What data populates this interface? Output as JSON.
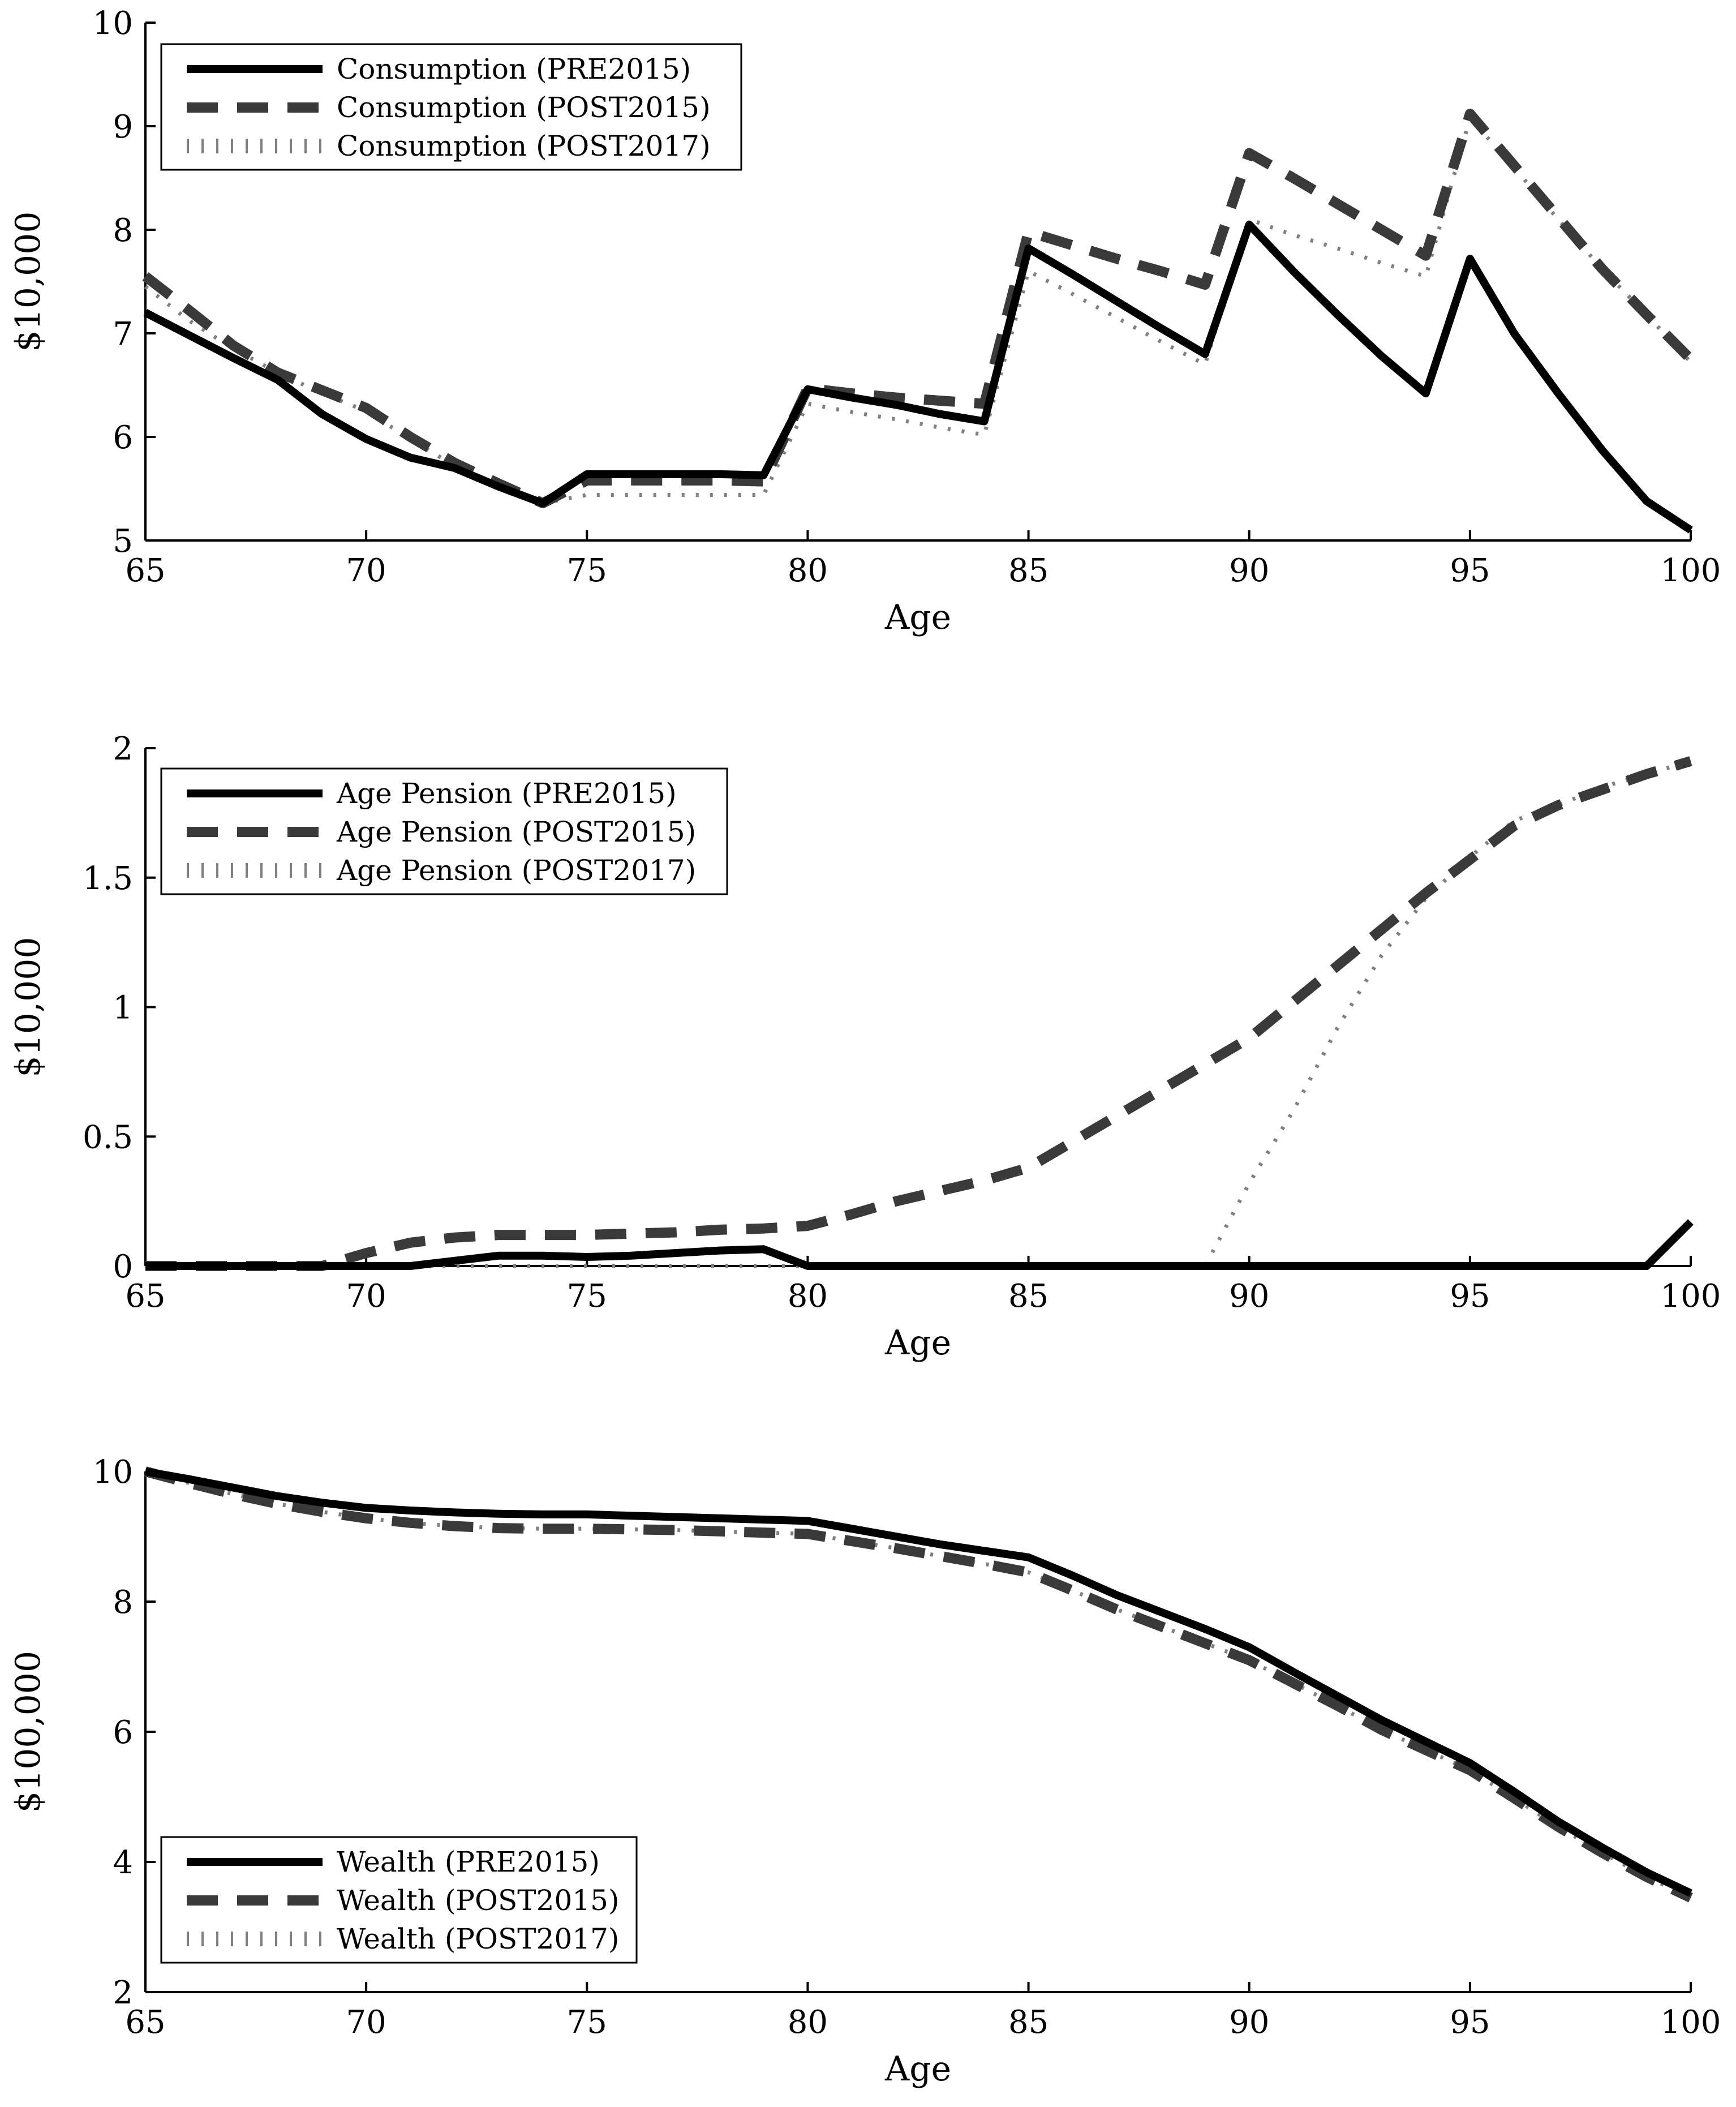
{
  "colors": {
    "pre2015": "#000000",
    "post2015": "#3a3a3a",
    "post2017": "#808080",
    "axis": "#000000",
    "background": "#ffffff"
  },
  "chart_data": [
    {
      "type": "line",
      "title": "",
      "xlabel": "Age",
      "ylabel": "$10,000",
      "xlim": [
        65,
        100
      ],
      "ylim": [
        5,
        10
      ],
      "xticks": [
        "65",
        "70",
        "75",
        "80",
        "85",
        "90",
        "95",
        "100"
      ],
      "yticks": [
        "5",
        "6",
        "7",
        "8",
        "9",
        "10"
      ],
      "legend_position": "top-left",
      "x": [
        65,
        66,
        67,
        68,
        69,
        70,
        71,
        72,
        73,
        74,
        75,
        76,
        77,
        78,
        79,
        80,
        81,
        82,
        83,
        84,
        85,
        86,
        87,
        88,
        89,
        90,
        91,
        92,
        93,
        94,
        95,
        96,
        97,
        98,
        99,
        100
      ],
      "series": [
        {
          "name": "Consumption (PRE2015)",
          "style": "solid",
          "values": [
            7.2,
            6.98,
            6.76,
            6.55,
            6.22,
            5.98,
            5.8,
            5.7,
            5.52,
            5.36,
            5.64,
            5.64,
            5.64,
            5.64,
            5.63,
            6.46,
            6.38,
            6.31,
            6.22,
            6.15,
            7.82,
            7.57,
            7.31,
            7.05,
            6.8,
            8.05,
            7.6,
            7.18,
            6.78,
            6.42,
            7.72,
            7.0,
            6.42,
            5.87,
            5.38,
            5.1
          ]
        },
        {
          "name": "Consumption (POST2015)",
          "style": "dashed",
          "values": [
            7.55,
            7.22,
            6.88,
            6.62,
            6.45,
            6.28,
            6.0,
            5.75,
            5.55,
            5.36,
            5.58,
            5.58,
            5.58,
            5.58,
            5.57,
            6.47,
            6.42,
            6.38,
            6.35,
            6.32,
            7.98,
            7.85,
            7.72,
            7.6,
            7.47,
            8.74,
            8.5,
            8.25,
            8.0,
            7.75,
            9.12,
            8.62,
            8.12,
            7.62,
            7.18,
            6.75
          ]
        },
        {
          "name": "Consumption (POST2017)",
          "style": "dotted",
          "values": [
            7.45,
            7.12,
            6.85,
            6.62,
            6.42,
            6.25,
            5.98,
            5.72,
            5.52,
            5.36,
            5.44,
            5.44,
            5.44,
            5.44,
            5.44,
            6.32,
            6.24,
            6.17,
            6.09,
            6.02,
            7.6,
            7.38,
            7.15,
            6.92,
            6.7,
            8.1,
            7.95,
            7.82,
            7.68,
            7.55,
            9.08,
            8.6,
            8.1,
            7.62,
            7.18,
            6.72
          ]
        }
      ]
    },
    {
      "type": "line",
      "title": "",
      "xlabel": "Age",
      "ylabel": "$10,000",
      "xlim": [
        65,
        100
      ],
      "ylim": [
        0,
        2
      ],
      "xticks": [
        "65",
        "70",
        "75",
        "80",
        "85",
        "90",
        "95",
        "100"
      ],
      "yticks": [
        "0",
        "0.5",
        "1",
        "1.5",
        "2"
      ],
      "legend_position": "top-left",
      "x": [
        65,
        66,
        67,
        68,
        69,
        70,
        71,
        72,
        73,
        74,
        75,
        76,
        77,
        78,
        79,
        80,
        81,
        82,
        83,
        84,
        85,
        86,
        87,
        88,
        89,
        90,
        91,
        92,
        93,
        94,
        95,
        96,
        97,
        98,
        99,
        100
      ],
      "series": [
        {
          "name": "Age Pension (PRE2015)",
          "style": "solid",
          "values": [
            0,
            0,
            0,
            0,
            0,
            0,
            0,
            0.02,
            0.04,
            0.04,
            0.035,
            0.04,
            0.05,
            0.06,
            0.065,
            0,
            0,
            0,
            0,
            0,
            0,
            0,
            0,
            0,
            0,
            0,
            0,
            0,
            0,
            0,
            0,
            0,
            0,
            0,
            0,
            0.17
          ]
        },
        {
          "name": "Age Pension (POST2015)",
          "style": "dashed",
          "values": [
            0,
            0,
            0,
            0,
            0,
            0.05,
            0.09,
            0.11,
            0.12,
            0.12,
            0.12,
            0.125,
            0.13,
            0.14,
            0.145,
            0.155,
            0.2,
            0.25,
            0.29,
            0.33,
            0.38,
            0.48,
            0.58,
            0.68,
            0.78,
            0.88,
            1.02,
            1.16,
            1.3,
            1.44,
            1.57,
            1.7,
            1.78,
            1.84,
            1.9,
            1.95
          ]
        },
        {
          "name": "Age Pension (POST2017)",
          "style": "dotted",
          "values": [
            0,
            0,
            0,
            0,
            0,
            0,
            0,
            0,
            0,
            0,
            0,
            0,
            0,
            0,
            0,
            0,
            0,
            0,
            0,
            0,
            0,
            0,
            0,
            0,
            0,
            0.32,
            0.6,
            0.92,
            1.2,
            1.42,
            1.58,
            1.72,
            1.78,
            1.85,
            1.9,
            1.95
          ]
        }
      ]
    },
    {
      "type": "line",
      "title": "",
      "xlabel": "Age",
      "ylabel": "$100,000",
      "xlim": [
        65,
        100
      ],
      "ylim": [
        2,
        10
      ],
      "xticks": [
        "65",
        "70",
        "75",
        "80",
        "85",
        "90",
        "95",
        "100"
      ],
      "yticks": [
        "2",
        "4",
        "6",
        "8",
        "10"
      ],
      "legend_position": "bottom-left",
      "x": [
        65,
        66,
        67,
        68,
        69,
        70,
        71,
        72,
        73,
        74,
        75,
        76,
        77,
        78,
        79,
        80,
        81,
        82,
        83,
        84,
        85,
        86,
        87,
        88,
        89,
        90,
        91,
        92,
        93,
        94,
        95,
        96,
        97,
        98,
        99,
        100
      ],
      "series": [
        {
          "name": "Wealth (PRE2015)",
          "style": "solid",
          "values": [
            10.0,
            9.88,
            9.75,
            9.62,
            9.52,
            9.44,
            9.4,
            9.37,
            9.35,
            9.34,
            9.34,
            9.32,
            9.3,
            9.28,
            9.26,
            9.24,
            9.12,
            9.0,
            8.88,
            8.78,
            8.68,
            8.4,
            8.1,
            7.84,
            7.58,
            7.3,
            6.92,
            6.55,
            6.18,
            5.85,
            5.52,
            5.08,
            4.62,
            4.22,
            3.84,
            3.52
          ]
        },
        {
          "name": "Wealth (POST2015)",
          "style": "dashed",
          "values": [
            10.0,
            9.82,
            9.65,
            9.5,
            9.38,
            9.28,
            9.21,
            9.16,
            9.13,
            9.12,
            9.12,
            9.11,
            9.1,
            9.08,
            9.06,
            9.04,
            8.93,
            8.82,
            8.7,
            8.58,
            8.45,
            8.17,
            7.88,
            7.62,
            7.36,
            7.1,
            6.75,
            6.4,
            6.03,
            5.72,
            5.41,
            4.98,
            4.54,
            4.14,
            3.77,
            3.45
          ]
        },
        {
          "name": "Wealth (POST2017)",
          "style": "dotted",
          "values": [
            10.0,
            9.82,
            9.65,
            9.5,
            9.38,
            9.28,
            9.21,
            9.16,
            9.13,
            9.12,
            9.12,
            9.11,
            9.1,
            9.08,
            9.06,
            9.04,
            8.93,
            8.82,
            8.7,
            8.58,
            8.45,
            8.17,
            7.88,
            7.62,
            7.36,
            7.1,
            6.75,
            6.4,
            6.03,
            5.72,
            5.41,
            4.98,
            4.54,
            4.14,
            3.77,
            3.45
          ]
        }
      ]
    }
  ]
}
